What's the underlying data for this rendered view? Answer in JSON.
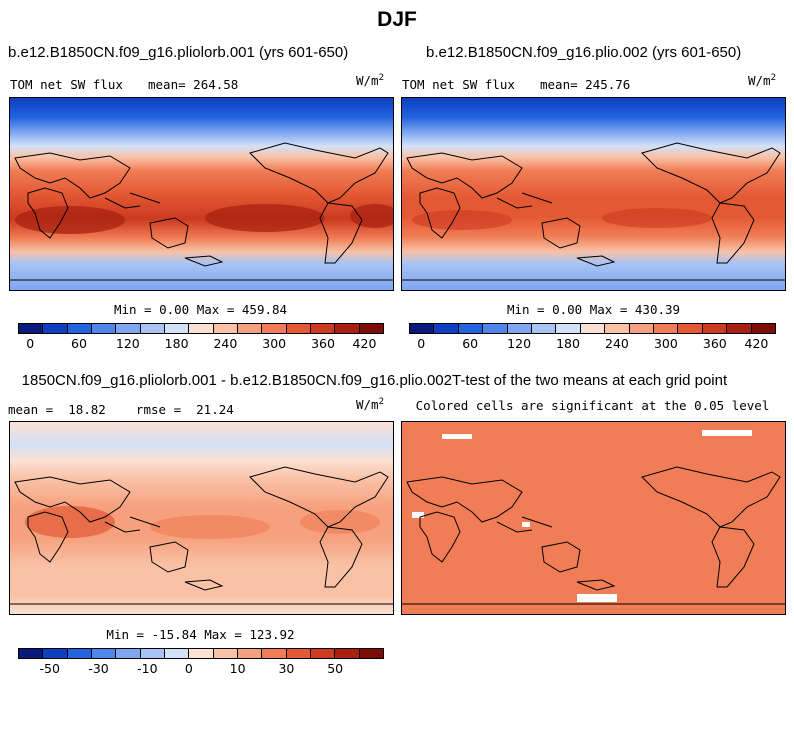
{
  "page": {
    "title": "DJF"
  },
  "panels": {
    "top_left": {
      "title": "b.e12.B1850CN.f09_g16.pliolorb.001 (yrs 601-650)",
      "variable": "TOM net SW flux",
      "mean_label": "mean=",
      "mean_value": "264.58",
      "units_base": "W/m",
      "units_exp": "2",
      "stats": "Min =   0.00 Max = 459.84"
    },
    "top_right": {
      "title": "b.e12.B1850CN.f09_g16.plio.002 (yrs 601-650)",
      "variable": "TOM net SW flux",
      "mean_label": "mean=",
      "mean_value": "245.76",
      "units_base": "W/m",
      "units_exp": "2",
      "stats": "Min =   0.00 Max = 430.39"
    },
    "bottom_left": {
      "title": "1850CN.f09_g16.pliolorb.001 - b.e12.B1850CN.f09_g16.plio.002",
      "stats_line": "mean =  18.82    rmse =  21.24",
      "units_base": "W/m",
      "units_exp": "2",
      "stats": "Min = -15.84 Max = 123.92"
    },
    "bottom_right": {
      "title": "T-test of the two means at each grid point",
      "subtitle": "Colored cells are significant at the 0.05 level"
    }
  },
  "colorbars": {
    "absolute": {
      "colors": [
        "#0a1a7a",
        "#0d3fbf",
        "#2263e0",
        "#4f86ec",
        "#7fa7f1",
        "#a9c3f4",
        "#d2e1f7",
        "#fbe1d3",
        "#f9c1a6",
        "#f6a07d",
        "#f07d55",
        "#e35934",
        "#cc3a1f",
        "#a82110",
        "#7c0c06"
      ],
      "tick_labels": [
        "0",
        "60",
        "120",
        "180",
        "240",
        "300",
        "360",
        "420"
      ]
    },
    "difference": {
      "colors": [
        "#0a1a7a",
        "#0d3fbf",
        "#2263e0",
        "#4f86ec",
        "#7fa7f1",
        "#a9c3f4",
        "#d2e1f7",
        "#fbe1d3",
        "#f9c1a6",
        "#f6a07d",
        "#f07d55",
        "#e35934",
        "#cc3a1f",
        "#a82110",
        "#7c0c06"
      ],
      "tick_labels": [
        "-50",
        "-30",
        "-10",
        "0",
        "10",
        "30",
        "50"
      ]
    }
  }
}
